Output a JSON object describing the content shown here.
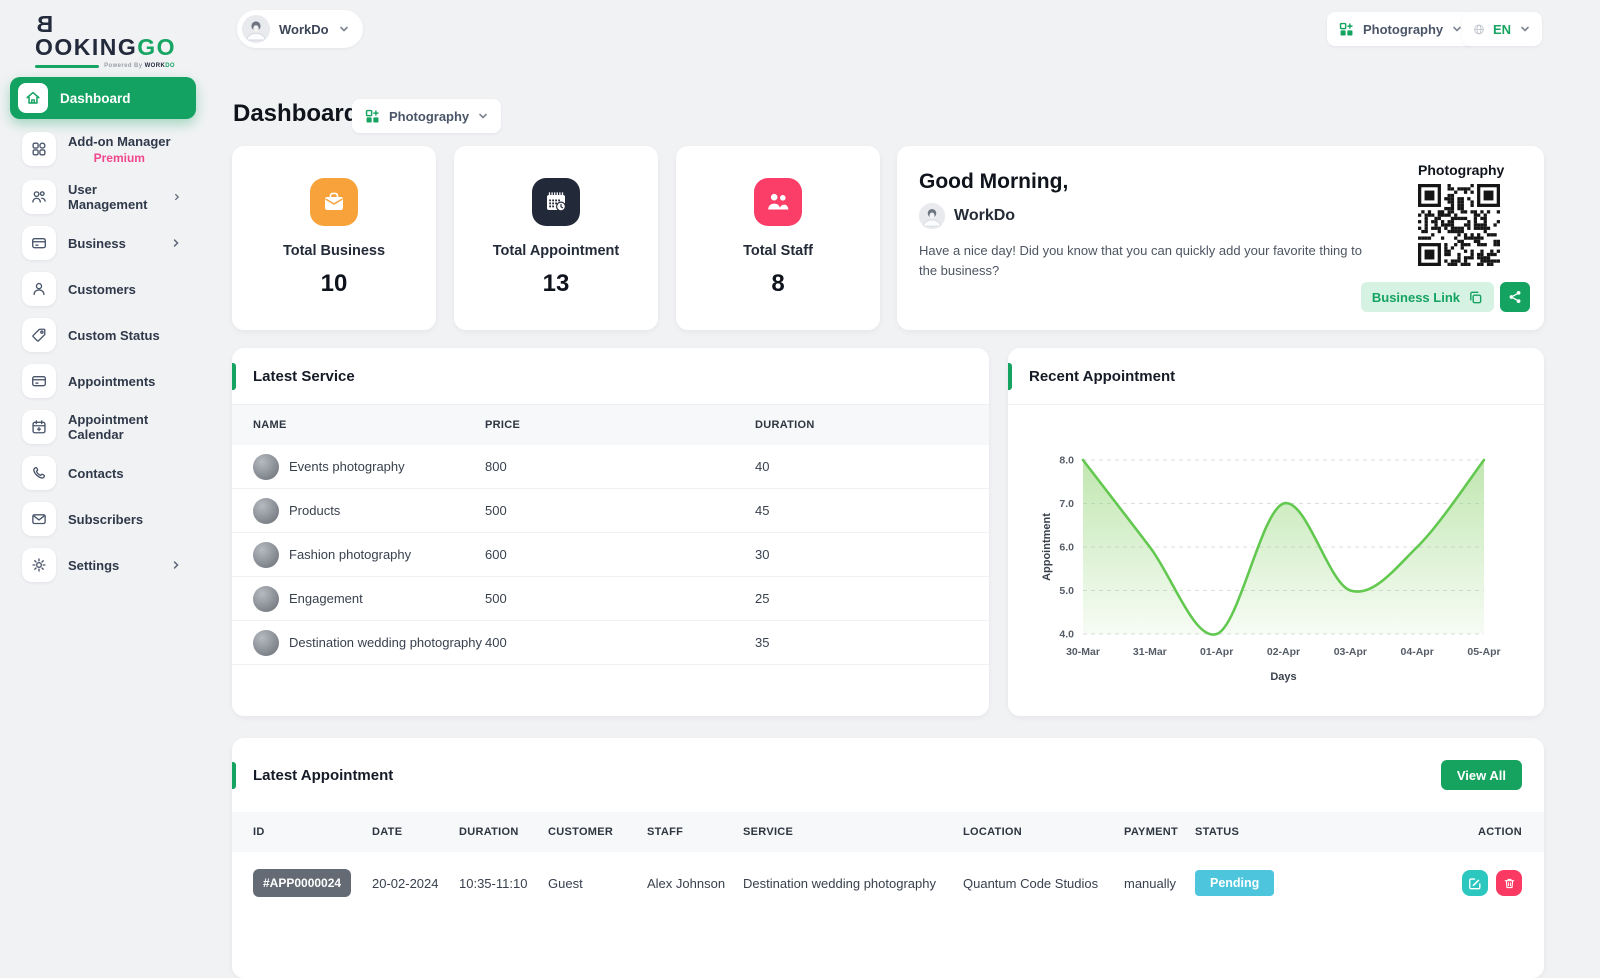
{
  "brand": {
    "logo_b": "B",
    "logo_rest": "OOKING",
    "logo_go": "GO",
    "powered_prefix": "Powered By",
    "powered_work": "WORK",
    "powered_do": "DO"
  },
  "topbar": {
    "workspace": {
      "name": "WorkDo"
    },
    "business_selector": {
      "label": "Photography"
    },
    "language_selector": {
      "label": "EN"
    }
  },
  "sidebar": {
    "items": [
      {
        "label": "Dashboard"
      },
      {
        "label": "Add-on Manager",
        "sublabel": "Premium"
      },
      {
        "label": "User Management"
      },
      {
        "label": "Business"
      },
      {
        "label": "Customers"
      },
      {
        "label": "Custom Status"
      },
      {
        "label": "Appointments"
      },
      {
        "label": "Appointment Calendar"
      },
      {
        "label": "Contacts"
      },
      {
        "label": "Subscribers"
      },
      {
        "label": "Settings"
      }
    ]
  },
  "page": {
    "title": "Dashboard",
    "business_selector": "Photography"
  },
  "stats": [
    {
      "label": "Total Business",
      "value": "10",
      "icon": "briefcase-icon",
      "color": "#f7a23b"
    },
    {
      "label": "Total Appointment",
      "value": "13",
      "icon": "calendar-clock-icon",
      "color": "#222a3a"
    },
    {
      "label": "Total Staff",
      "value": "8",
      "icon": "staff-icon",
      "color": "#fb3e68"
    }
  ],
  "greeting": {
    "title": "Good Morning,",
    "user": "WorkDo",
    "message": "Have a nice day! Did you know that you can quickly add your favorite thing to the business?",
    "qr_title": "Photography",
    "business_link_label": "Business Link"
  },
  "latest_service": {
    "title": "Latest Service",
    "columns": [
      "NAME",
      "PRICE",
      "DURATION"
    ],
    "rows": [
      {
        "name": "Events photography",
        "price": "800",
        "duration": "40"
      },
      {
        "name": "Products",
        "price": "500",
        "duration": "45"
      },
      {
        "name": "Fashion photography",
        "price": "600",
        "duration": "30"
      },
      {
        "name": "Engagement",
        "price": "500",
        "duration": "25"
      },
      {
        "name": "Destination wedding photography",
        "price": "400",
        "duration": "35"
      }
    ]
  },
  "recent_appointment": {
    "title": "Recent Appointment"
  },
  "chart_data": {
    "type": "area",
    "title": "Recent Appointment",
    "x": [
      "30-Mar",
      "31-Mar",
      "01-Apr",
      "02-Apr",
      "03-Apr",
      "04-Apr",
      "05-Apr"
    ],
    "series": [
      {
        "name": "Appointment",
        "values": [
          8,
          6,
          4,
          7,
          5,
          6,
          8
        ]
      }
    ],
    "xlabel": "Days",
    "ylabel": "Appointment",
    "ylim": [
      4,
      8
    ],
    "yticks": [
      8,
      7,
      6,
      5,
      4
    ],
    "grid": "dashed-horizontal",
    "legend": "none",
    "line_color": "#62c84f",
    "fill_color": "#8ed370"
  },
  "latest_appointment": {
    "title": "Latest Appointment",
    "view_all_label": "View All",
    "columns": [
      "ID",
      "DATE",
      "DURATION",
      "CUSTOMER",
      "STAFF",
      "SERVICE",
      "LOCATION",
      "PAYMENT",
      "STATUS",
      "ACTION"
    ],
    "rows": [
      {
        "id": "#APP0000024",
        "date": "20-02-2024",
        "duration": "10:35-11:10",
        "customer": "Guest",
        "staff": "Alex Johnson",
        "service": "Destination wedding photography",
        "location": "Quantum Code Studios",
        "payment": "manually",
        "status": "Pending"
      }
    ]
  },
  "colors": {
    "primary_green": "#15a362",
    "premium_pink": "#f0478e",
    "pending_badge": "#4cc5dd",
    "edit_button": "#2cc8c0",
    "delete_button": "#fb3a63",
    "id_badge": "#646b74"
  }
}
